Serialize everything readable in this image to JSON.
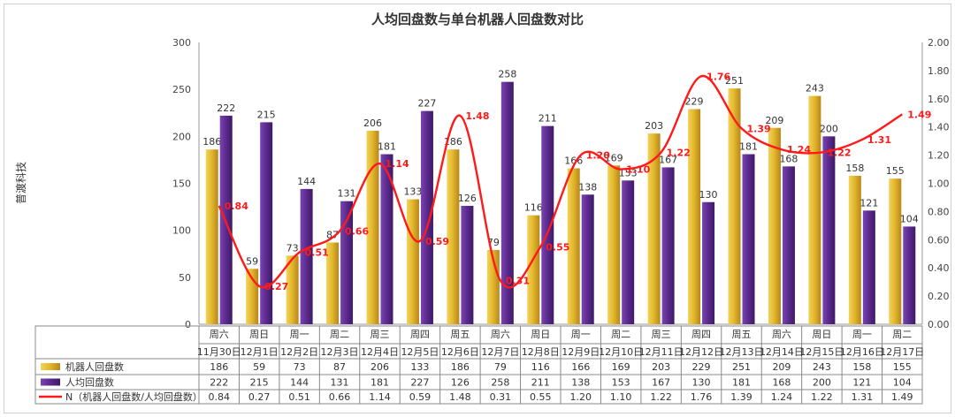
{
  "chart_data": {
    "type": "bar",
    "title": "人均回盘数与单台机器人回盘数对比",
    "side_label": "普渡科技",
    "weekdays": [
      "周六",
      "周日",
      "周一",
      "周二",
      "周三",
      "周四",
      "周五",
      "周六",
      "周日",
      "周一",
      "周二",
      "周三",
      "周四",
      "周五",
      "周六",
      "周日",
      "周一",
      "周二"
    ],
    "categories": [
      "11月30日",
      "12月1日",
      "12月2日",
      "12月3日",
      "12月4日",
      "12月5日",
      "12月6日",
      "12月7日",
      "12月8日",
      "12月9日",
      "12月10日",
      "12月11日",
      "12月12日",
      "12月13日",
      "12月14日",
      "12月15日",
      "12月16日",
      "12月17日"
    ],
    "y_left": {
      "min": 0,
      "max": 300,
      "ticks": [
        "0",
        "50",
        "100",
        "150",
        "200",
        "250",
        "300"
      ]
    },
    "y_right": {
      "min": 0,
      "max": 2,
      "ticks": [
        "0.00",
        "0.20",
        "0.40",
        "0.60",
        "0.80",
        "1.00",
        "1.20",
        "1.40",
        "1.60",
        "1.80",
        "2.00"
      ]
    },
    "series": [
      {
        "name": "机器人回盘数",
        "kind": "bar",
        "color": "#e0b52a",
        "values": [
          186,
          59,
          73,
          87,
          206,
          133,
          186,
          79,
          116,
          166,
          169,
          203,
          229,
          251,
          209,
          243,
          158,
          155
        ],
        "table_values": [
          "186",
          "59",
          "73",
          "87",
          "206",
          "133",
          "186",
          "79",
          "116",
          "166",
          "169",
          "203",
          "229",
          "251",
          "209",
          "243",
          "158",
          "155"
        ]
      },
      {
        "name": "人均回盘数",
        "kind": "bar",
        "color": "#5a2a8c",
        "values": [
          222,
          215,
          144,
          131,
          181,
          227,
          126,
          258,
          211,
          138,
          153,
          167,
          130,
          181,
          168,
          200,
          121,
          104
        ],
        "table_values": [
          "222",
          "215",
          "144",
          "131",
          "181",
          "227",
          "126",
          "258",
          "211",
          "138",
          "153",
          "167",
          "130",
          "181",
          "168",
          "200",
          "121",
          "104"
        ]
      },
      {
        "name": "N（机器人回盘数/人均回盘数）",
        "kind": "line",
        "color": "#ff1a1a",
        "values": [
          0.84,
          0.27,
          0.51,
          0.66,
          1.14,
          0.59,
          1.48,
          0.31,
          0.55,
          1.2,
          1.1,
          1.22,
          1.76,
          1.39,
          1.24,
          1.22,
          1.31,
          1.49
        ],
        "labels": [
          "0.84",
          "0.27",
          "0.51",
          "0.66",
          "1.14",
          "0.59",
          "1.48",
          "0.31",
          "0.55",
          "1.20",
          "1.10",
          "1.22",
          "1.76",
          "1.39",
          "1.24",
          "1.22",
          "1.31",
          "1.49"
        ]
      }
    ]
  }
}
